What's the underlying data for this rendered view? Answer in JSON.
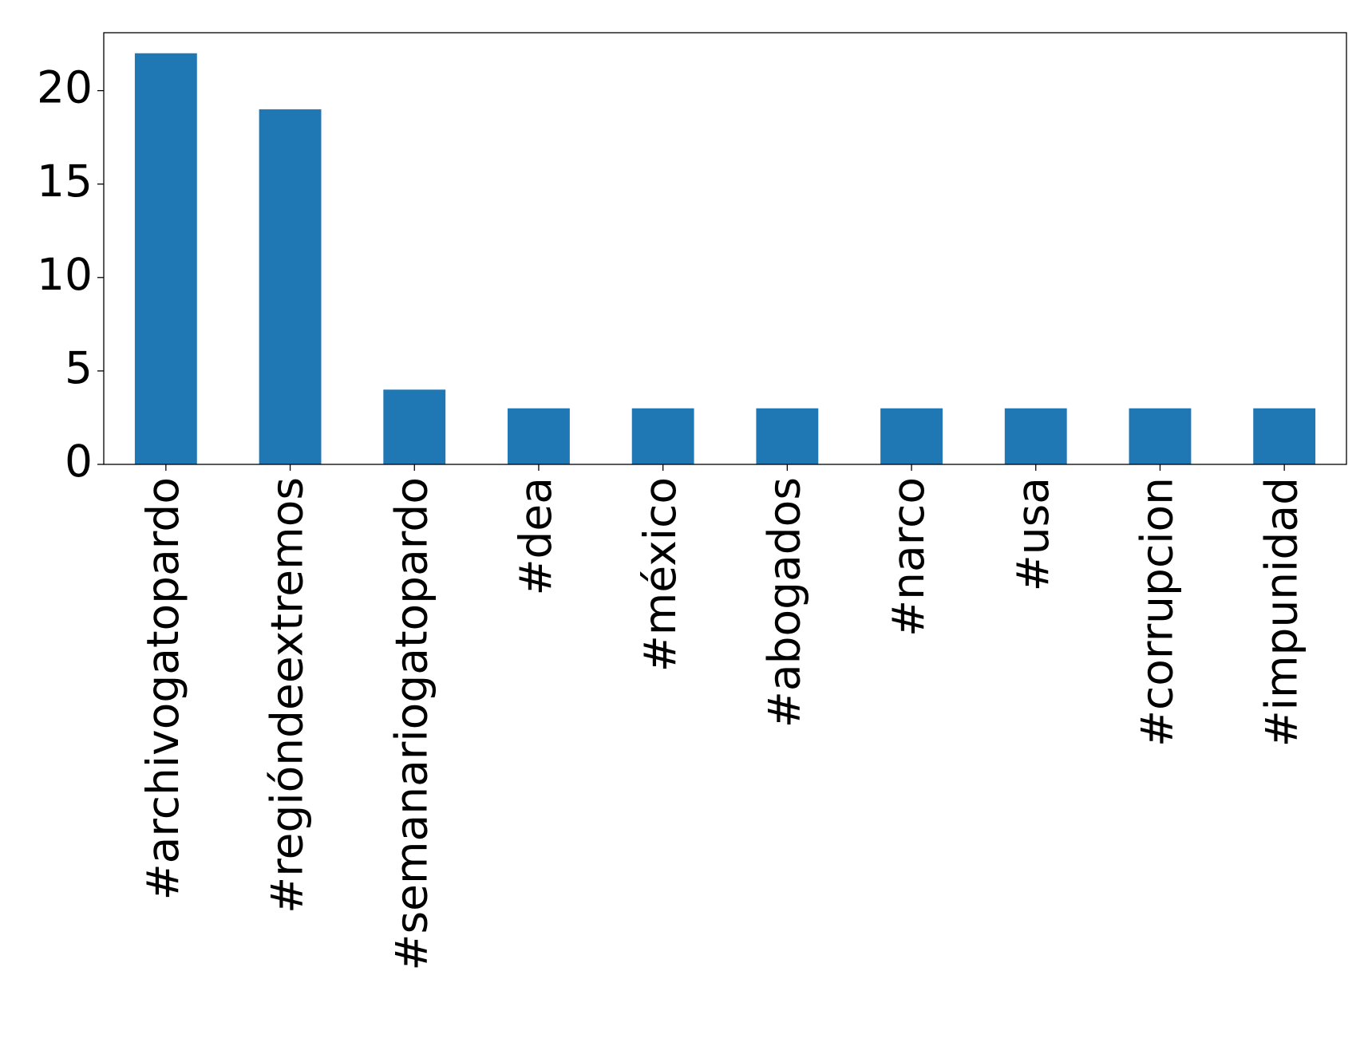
{
  "chart_data": {
    "type": "bar",
    "categories": [
      "#archivogatopardo",
      "#regióndeextremos",
      "#semanariogatopardo",
      "#dea",
      "#méxico",
      "#abogados",
      "#narco",
      "#usa",
      "#corrupcion",
      "#impunidad"
    ],
    "values": [
      22,
      19,
      4,
      3,
      3,
      3,
      3,
      3,
      3,
      3
    ],
    "color": "#1f77b4",
    "ylim": [
      0,
      23.1
    ],
    "yticks": [
      0,
      5,
      10,
      15,
      20
    ],
    "grid": false
  }
}
